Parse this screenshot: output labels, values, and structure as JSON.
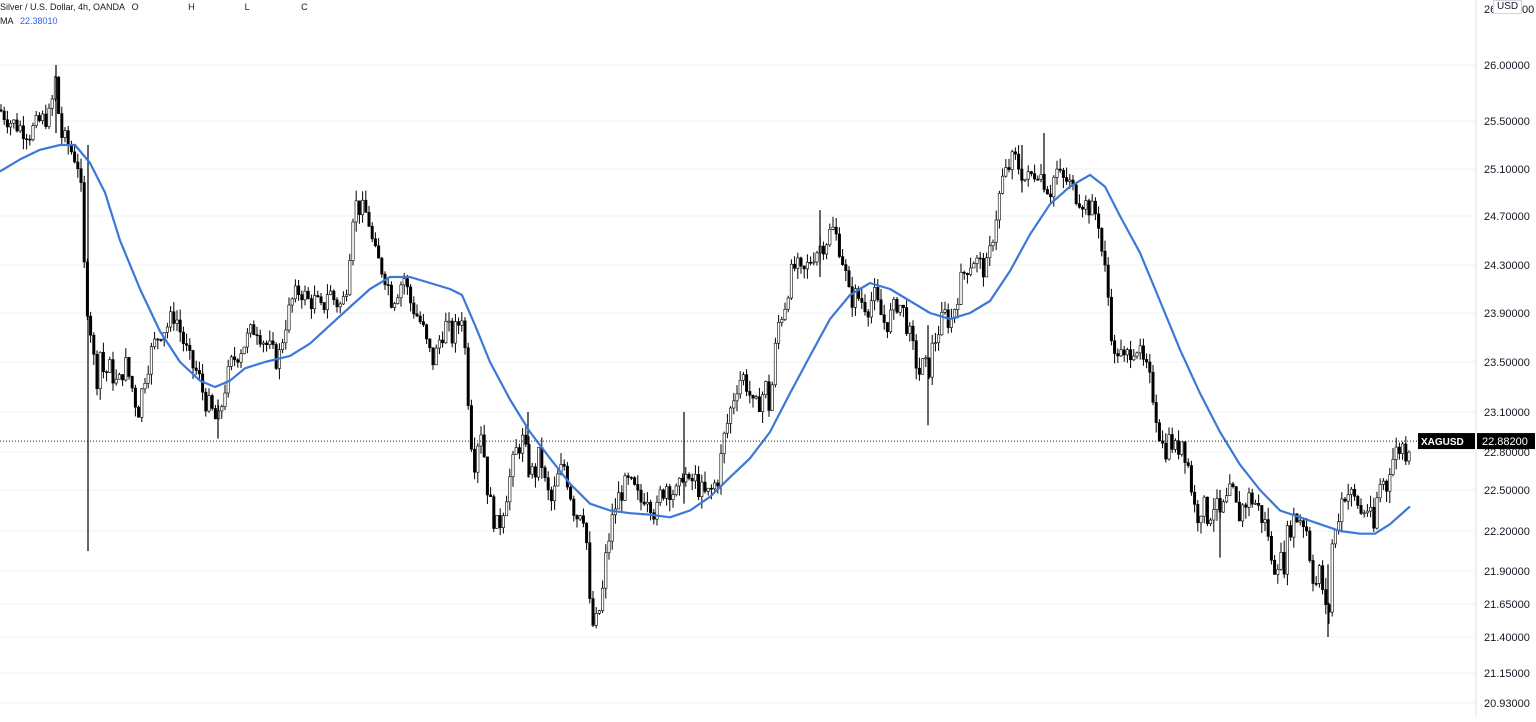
{
  "header": {
    "symbol_title": "Silver / U.S. Dollar, 4h, OANDA",
    "ohlc_labels": [
      "O",
      "H",
      "L",
      "C"
    ],
    "ma_label": "MA",
    "ma_value": "22.38010"
  },
  "currency_badge": "USD",
  "price_tag": {
    "symbol": "XAGUSD",
    "value": "22.88200"
  },
  "colors": {
    "candle": "#000000",
    "ma_line": "#3c78d8",
    "grid": "#eef0f3",
    "axis_text": "#131722",
    "price_tag_bg": "#000000",
    "price_tag_text": "#ffffff"
  },
  "chart_data": {
    "type": "candlestick",
    "series_note": "4h candles approximated from visible price path",
    "y_ticks": [
      "26.00000",
      "25.50000",
      "25.10000",
      "24.70000",
      "24.30000",
      "23.90000",
      "23.50000",
      "23.10000",
      "22.80000",
      "22.50000",
      "22.20000",
      "21.90000",
      "21.65000",
      "21.40000",
      "21.15000",
      "20.93000"
    ],
    "y_range": [
      20.9,
      26.6
    ],
    "current_price": 22.882,
    "price_path": [
      [
        0,
        25.6
      ],
      [
        10,
        25.5
      ],
      [
        20,
        25.45
      ],
      [
        30,
        25.4
      ],
      [
        40,
        25.5
      ],
      [
        50,
        25.55
      ],
      [
        56,
        25.9
      ],
      [
        60,
        25.4
      ],
      [
        68,
        25.3
      ],
      [
        75,
        25.2
      ],
      [
        80,
        25.1
      ],
      [
        84,
        24.3
      ],
      [
        88,
        23.9
      ],
      [
        92,
        23.7
      ],
      [
        96,
        23.3
      ],
      [
        100,
        23.6
      ],
      [
        104,
        23.4
      ],
      [
        110,
        23.45
      ],
      [
        118,
        23.3
      ],
      [
        125,
        23.5
      ],
      [
        132,
        23.3
      ],
      [
        138,
        23.1
      ],
      [
        145,
        23.4
      ],
      [
        152,
        23.6
      ],
      [
        160,
        23.75
      ],
      [
        168,
        23.8
      ],
      [
        175,
        23.9
      ],
      [
        182,
        23.7
      ],
      [
        190,
        23.5
      ],
      [
        198,
        23.4
      ],
      [
        205,
        23.2
      ],
      [
        212,
        23.1
      ],
      [
        218,
        23.0
      ],
      [
        225,
        23.3
      ],
      [
        232,
        23.5
      ],
      [
        240,
        23.6
      ],
      [
        248,
        23.7
      ],
      [
        256,
        23.8
      ],
      [
        262,
        23.7
      ],
      [
        270,
        23.6
      ],
      [
        278,
        23.5
      ],
      [
        285,
        23.8
      ],
      [
        292,
        24.0
      ],
      [
        300,
        24.1
      ],
      [
        308,
        24.0
      ],
      [
        316,
        24.0
      ],
      [
        322,
        23.9
      ],
      [
        328,
        24.1
      ],
      [
        335,
        24.0
      ],
      [
        342,
        23.95
      ],
      [
        348,
        24.2
      ],
      [
        352,
        24.7
      ],
      [
        356,
        24.8
      ],
      [
        362,
        24.75
      ],
      [
        368,
        24.7
      ],
      [
        374,
        24.4
      ],
      [
        380,
        24.3
      ],
      [
        386,
        24.2
      ],
      [
        392,
        24.0
      ],
      [
        398,
        24.1
      ],
      [
        404,
        24.2
      ],
      [
        410,
        24.0
      ],
      [
        416,
        23.9
      ],
      [
        422,
        23.8
      ],
      [
        428,
        23.6
      ],
      [
        434,
        23.5
      ],
      [
        440,
        23.7
      ],
      [
        446,
        23.8
      ],
      [
        452,
        23.7
      ],
      [
        458,
        23.8
      ],
      [
        462,
        23.9
      ],
      [
        466,
        23.5
      ],
      [
        470,
        23.0
      ],
      [
        474,
        22.7
      ],
      [
        478,
        22.9
      ],
      [
        482,
        23.0
      ],
      [
        486,
        22.6
      ],
      [
        490,
        22.4
      ],
      [
        494,
        22.3
      ],
      [
        498,
        22.2
      ],
      [
        504,
        22.4
      ],
      [
        510,
        22.6
      ],
      [
        516,
        22.8
      ],
      [
        522,
        22.9
      ],
      [
        528,
        22.7
      ],
      [
        534,
        22.6
      ],
      [
        540,
        22.8
      ],
      [
        546,
        22.5
      ],
      [
        552,
        22.4
      ],
      [
        558,
        22.6
      ],
      [
        564,
        22.7
      ],
      [
        570,
        22.5
      ],
      [
        576,
        22.3
      ],
      [
        582,
        22.4
      ],
      [
        586,
        22.2
      ],
      [
        590,
        21.6
      ],
      [
        594,
        21.45
      ],
      [
        598,
        21.55
      ],
      [
        602,
        21.7
      ],
      [
        606,
        22.0
      ],
      [
        610,
        22.2
      ],
      [
        616,
        22.4
      ],
      [
        622,
        22.5
      ],
      [
        628,
        22.55
      ],
      [
        634,
        22.5
      ],
      [
        640,
        22.4
      ],
      [
        646,
        22.5
      ],
      [
        652,
        22.4
      ],
      [
        656,
        22.3
      ],
      [
        660,
        22.45
      ],
      [
        666,
        22.55
      ],
      [
        672,
        22.5
      ],
      [
        678,
        22.45
      ],
      [
        684,
        22.7
      ],
      [
        688,
        22.5
      ],
      [
        694,
        22.6
      ],
      [
        700,
        22.5
      ],
      [
        706,
        22.45
      ],
      [
        712,
        22.5
      ],
      [
        718,
        22.6
      ],
      [
        724,
        22.9
      ],
      [
        730,
        23.1
      ],
      [
        736,
        23.3
      ],
      [
        742,
        23.4
      ],
      [
        748,
        23.3
      ],
      [
        754,
        23.1
      ],
      [
        760,
        23.2
      ],
      [
        766,
        23.3
      ],
      [
        770,
        23.1
      ],
      [
        774,
        23.5
      ],
      [
        778,
        23.8
      ],
      [
        782,
        23.9
      ],
      [
        786,
        24.0
      ],
      [
        790,
        24.2
      ],
      [
        796,
        24.3
      ],
      [
        802,
        24.2
      ],
      [
        808,
        24.3
      ],
      [
        814,
        24.4
      ],
      [
        820,
        24.45
      ],
      [
        826,
        24.5
      ],
      [
        832,
        24.6
      ],
      [
        838,
        24.5
      ],
      [
        844,
        24.3
      ],
      [
        850,
        24.0
      ],
      [
        856,
        24.05
      ],
      [
        862,
        24.0
      ],
      [
        868,
        23.95
      ],
      [
        874,
        24.05
      ],
      [
        880,
        23.9
      ],
      [
        886,
        23.8
      ],
      [
        892,
        23.9
      ],
      [
        898,
        24.0
      ],
      [
        904,
        23.9
      ],
      [
        910,
        23.7
      ],
      [
        916,
        23.5
      ],
      [
        920,
        23.4
      ],
      [
        924,
        23.5
      ],
      [
        928,
        23.4
      ],
      [
        932,
        23.6
      ],
      [
        936,
        23.7
      ],
      [
        940,
        23.8
      ],
      [
        946,
        23.9
      ],
      [
        950,
        23.8
      ],
      [
        956,
        24.0
      ],
      [
        962,
        24.2
      ],
      [
        968,
        24.3
      ],
      [
        974,
        24.35
      ],
      [
        980,
        24.3
      ],
      [
        986,
        24.25
      ],
      [
        990,
        24.4
      ],
      [
        994,
        24.6
      ],
      [
        998,
        24.8
      ],
      [
        1002,
        25.0
      ],
      [
        1008,
        25.1
      ],
      [
        1014,
        25.2
      ],
      [
        1020,
        25.1
      ],
      [
        1026,
        25.0
      ],
      [
        1032,
        25.05
      ],
      [
        1038,
        25.1
      ],
      [
        1044,
        25.0
      ],
      [
        1050,
        24.9
      ],
      [
        1056,
        25.1
      ],
      [
        1062,
        25.0
      ],
      [
        1068,
        25.0
      ],
      [
        1074,
        24.9
      ],
      [
        1080,
        24.85
      ],
      [
        1086,
        24.8
      ],
      [
        1092,
        24.75
      ],
      [
        1098,
        24.7
      ],
      [
        1102,
        24.4
      ],
      [
        1106,
        24.2
      ],
      [
        1110,
        23.9
      ],
      [
        1114,
        23.5
      ],
      [
        1118,
        23.6
      ],
      [
        1124,
        23.5
      ],
      [
        1130,
        23.6
      ],
      [
        1136,
        23.65
      ],
      [
        1142,
        23.5
      ],
      [
        1148,
        23.4
      ],
      [
        1154,
        23.2
      ],
      [
        1158,
        23.0
      ],
      [
        1164,
        22.8
      ],
      [
        1170,
        22.9
      ],
      [
        1176,
        22.8
      ],
      [
        1182,
        22.9
      ],
      [
        1188,
        22.7
      ],
      [
        1192,
        22.5
      ],
      [
        1196,
        22.3
      ],
      [
        1202,
        22.4
      ],
      [
        1208,
        22.3
      ],
      [
        1214,
        22.4
      ],
      [
        1220,
        22.3
      ],
      [
        1226,
        22.4
      ],
      [
        1232,
        22.5
      ],
      [
        1238,
        22.3
      ],
      [
        1244,
        22.4
      ],
      [
        1250,
        22.45
      ],
      [
        1256,
        22.4
      ],
      [
        1262,
        22.3
      ],
      [
        1268,
        22.2
      ],
      [
        1272,
        21.9
      ],
      [
        1278,
        22.0
      ],
      [
        1284,
        21.95
      ],
      [
        1288,
        22.2
      ],
      [
        1294,
        22.3
      ],
      [
        1300,
        22.3
      ],
      [
        1306,
        22.25
      ],
      [
        1312,
        21.9
      ],
      [
        1316,
        21.8
      ],
      [
        1320,
        21.9
      ],
      [
        1324,
        21.7
      ],
      [
        1328,
        21.45
      ],
      [
        1332,
        22.1
      ],
      [
        1336,
        22.2
      ],
      [
        1340,
        22.4
      ],
      [
        1346,
        22.5
      ],
      [
        1352,
        22.45
      ],
      [
        1358,
        22.4
      ],
      [
        1362,
        22.3
      ],
      [
        1366,
        22.4
      ],
      [
        1370,
        22.3
      ],
      [
        1374,
        22.2
      ],
      [
        1378,
        22.5
      ],
      [
        1382,
        22.6
      ],
      [
        1386,
        22.5
      ],
      [
        1390,
        22.7
      ],
      [
        1396,
        22.8
      ],
      [
        1402,
        22.85
      ],
      [
        1406,
        22.8
      ],
      [
        1410,
        22.88
      ]
    ],
    "ma_path": [
      [
        0,
        25.08
      ],
      [
        20,
        25.18
      ],
      [
        40,
        25.26
      ],
      [
        60,
        25.3
      ],
      [
        75,
        25.3
      ],
      [
        90,
        25.15
      ],
      [
        105,
        24.9
      ],
      [
        120,
        24.5
      ],
      [
        140,
        24.1
      ],
      [
        160,
        23.75
      ],
      [
        180,
        23.5
      ],
      [
        200,
        23.35
      ],
      [
        215,
        23.3
      ],
      [
        230,
        23.35
      ],
      [
        245,
        23.45
      ],
      [
        265,
        23.5
      ],
      [
        290,
        23.55
      ],
      [
        310,
        23.65
      ],
      [
        330,
        23.8
      ],
      [
        350,
        23.95
      ],
      [
        370,
        24.1
      ],
      [
        390,
        24.2
      ],
      [
        410,
        24.2
      ],
      [
        430,
        24.15
      ],
      [
        450,
        24.1
      ],
      [
        462,
        24.05
      ],
      [
        475,
        23.8
      ],
      [
        490,
        23.5
      ],
      [
        510,
        23.2
      ],
      [
        530,
        22.95
      ],
      [
        550,
        22.75
      ],
      [
        570,
        22.55
      ],
      [
        590,
        22.4
      ],
      [
        610,
        22.35
      ],
      [
        630,
        22.33
      ],
      [
        650,
        22.32
      ],
      [
        670,
        22.3
      ],
      [
        690,
        22.35
      ],
      [
        710,
        22.45
      ],
      [
        730,
        22.6
      ],
      [
        750,
        22.75
      ],
      [
        770,
        22.95
      ],
      [
        790,
        23.25
      ],
      [
        810,
        23.55
      ],
      [
        830,
        23.85
      ],
      [
        850,
        24.05
      ],
      [
        870,
        24.15
      ],
      [
        890,
        24.1
      ],
      [
        910,
        24.0
      ],
      [
        930,
        23.9
      ],
      [
        950,
        23.85
      ],
      [
        970,
        23.9
      ],
      [
        990,
        24.0
      ],
      [
        1010,
        24.25
      ],
      [
        1030,
        24.55
      ],
      [
        1050,
        24.8
      ],
      [
        1070,
        24.95
      ],
      [
        1090,
        25.05
      ],
      [
        1105,
        24.95
      ],
      [
        1120,
        24.7
      ],
      [
        1140,
        24.4
      ],
      [
        1160,
        24.0
      ],
      [
        1180,
        23.6
      ],
      [
        1200,
        23.25
      ],
      [
        1220,
        22.95
      ],
      [
        1240,
        22.7
      ],
      [
        1260,
        22.5
      ],
      [
        1280,
        22.35
      ],
      [
        1300,
        22.3
      ],
      [
        1320,
        22.25
      ],
      [
        1340,
        22.2
      ],
      [
        1360,
        22.18
      ],
      [
        1375,
        22.18
      ],
      [
        1390,
        22.25
      ],
      [
        1410,
        22.38
      ]
    ],
    "big_wicks": [
      [
        88,
        25.3,
        22.05
      ],
      [
        56,
        26.0,
        25.4
      ],
      [
        528,
        23.1,
        22.6
      ],
      [
        684,
        23.1,
        22.4
      ],
      [
        820,
        24.75,
        24.2
      ],
      [
        1044,
        25.4,
        24.9
      ],
      [
        1022,
        25.3,
        24.9
      ],
      [
        218,
        23.2,
        22.9
      ],
      [
        928,
        23.8,
        23.0
      ],
      [
        1220,
        22.5,
        22.0
      ],
      [
        1328,
        21.95,
        21.4
      ]
    ]
  }
}
